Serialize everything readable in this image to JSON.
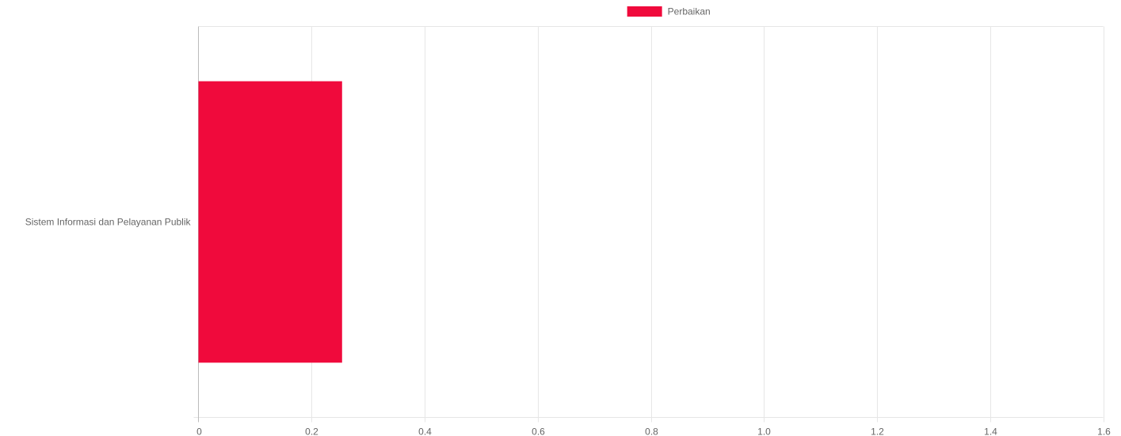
{
  "chart_data": {
    "type": "bar",
    "orientation": "horizontal",
    "categories": [
      "Sistem Informasi dan Pelayanan Publik"
    ],
    "series": [
      {
        "name": "Perbaikan",
        "values": [
          0.254
        ],
        "color": "#f00a3c"
      }
    ],
    "xlim": [
      0,
      1.6
    ],
    "x_ticks": [
      "0",
      "0.2",
      "0.4",
      "0.6",
      "0.8",
      "1.0",
      "1.2",
      "1.4",
      "1.6"
    ],
    "grid": true,
    "legend_position": "top"
  }
}
